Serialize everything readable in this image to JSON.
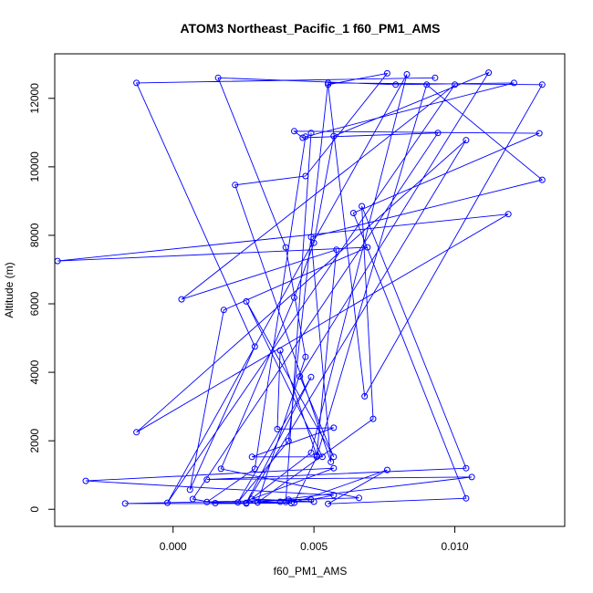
{
  "chart_data": {
    "type": "line",
    "title": "ATOM3 Northeast_Pacific_1 f60_PM1_AMS",
    "xlabel": "f60_PM1_AMS",
    "ylabel": "Altitude (m)",
    "xlim": [
      -0.0042,
      0.0139
    ],
    "ylim": [
      -500,
      13300
    ],
    "x_ticks": [
      0.0,
      0.005,
      0.01
    ],
    "x_tick_labels": [
      "0.000",
      "0.005",
      "0.010"
    ],
    "y_ticks": [
      0,
      2000,
      4000,
      6000,
      8000,
      10000,
      12000
    ],
    "y_tick_labels": [
      "0",
      "2000",
      "4000",
      "6000",
      "8000",
      "10000",
      "12000"
    ],
    "grid": false,
    "legend": "none",
    "series": [
      {
        "color": "#0000ff",
        "marker": "open-circle",
        "x": [
          0.0093,
          -0.0013,
          0.0029,
          0.0006,
          0.0018,
          0.0069,
          -0.0041,
          0.0119,
          -0.0013,
          0.0104,
          0.0026,
          -0.0017,
          0.0049,
          0.0057,
          -0.0031,
          0.0057,
          0.0028,
          0.005,
          0.0038,
          0.003,
          0.0106,
          0.0012,
          0.0104,
          0.0067,
          0.0071,
          0.003,
          0.0047,
          0.004,
          0.0016,
          0.0079,
          0.0121,
          0.0047,
          0.0029,
          0.0012,
          0.0042,
          0.0015,
          0.0007,
          0.0094,
          0.0046,
          0.0043,
          0.013,
          0.0064,
          0.0104,
          0.0055,
          0.0076,
          0.0043,
          0.0051,
          0.009,
          0.0131,
          0.0049,
          0.0056,
          0.0022,
          0.0047,
          0.0076,
          0.0055,
          0.0068,
          0.0131,
          0.0055,
          0.0041,
          0.0023,
          0.0049,
          0.0026,
          0.0049,
          0.0083,
          -0.0002,
          0.01,
          0.0003,
          0.0058,
          0.0051,
          0.0038,
          0.0037,
          0.0057,
          0.0028,
          0.0053,
          0.0026,
          0.0057,
          0.0045,
          0.0112,
          0.0057,
          0.005,
          0.0043,
          0.0017,
          0.0066,
          0.0041,
          0.004,
          0.0049
        ],
        "y": [
          12600,
          12450,
          4750,
          570,
          5820,
          7650,
          7250,
          8620,
          2250,
          10780,
          170,
          170,
          280,
          410,
          830,
          1200,
          300,
          220,
          220,
          200,
          940,
          870,
          1200,
          8850,
          2640,
          200,
          4450,
          7650,
          12600,
          12400,
          12450,
          10880,
          1180,
          210,
          180,
          180,
          300,
          10990,
          10850,
          11040,
          10980,
          8650,
          320,
          160,
          1150,
          190,
          1530,
          12400,
          9620,
          7950,
          1380,
          9470,
          9730,
          12730,
          12400,
          3300,
          12400,
          12450,
          2000,
          200,
          3860,
          190,
          1650,
          12700,
          190,
          12400,
          6130,
          7580,
          1570,
          4640,
          2340,
          2380,
          1530,
          1530,
          6070,
          1530,
          3880,
          12750,
          10900,
          7780,
          6180,
          1180,
          330,
          280,
          210,
          10990
        ]
      }
    ]
  }
}
